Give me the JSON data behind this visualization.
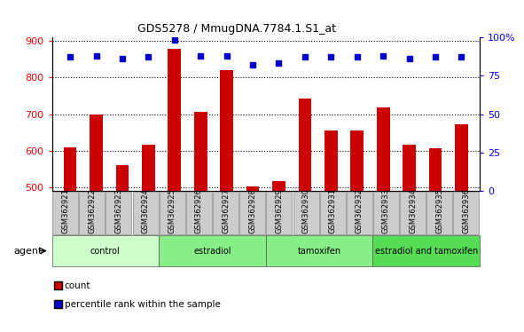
{
  "title": "GDS5278 / MmugDNA.7784.1.S1_at",
  "samples": [
    "GSM362921",
    "GSM362922",
    "GSM362923",
    "GSM362924",
    "GSM362925",
    "GSM362926",
    "GSM362927",
    "GSM362928",
    "GSM362929",
    "GSM362930",
    "GSM362931",
    "GSM362932",
    "GSM362933",
    "GSM362934",
    "GSM362935",
    "GSM362936"
  ],
  "counts": [
    610,
    700,
    560,
    617,
    878,
    707,
    820,
    503,
    518,
    742,
    655,
    655,
    718,
    617,
    608,
    672
  ],
  "percentile_ranks": [
    87,
    88,
    86,
    87,
    98,
    88,
    88,
    82,
    83,
    87,
    87,
    87,
    88,
    86,
    87,
    87
  ],
  "bar_color": "#cc0000",
  "dot_color": "#0000cc",
  "ylim_left": [
    490,
    910
  ],
  "ylim_right": [
    0,
    100
  ],
  "yticks_left": [
    500,
    600,
    700,
    800,
    900
  ],
  "yticks_right": [
    0,
    25,
    50,
    75,
    100
  ],
  "groups": [
    {
      "label": "control",
      "start": 0,
      "end": 4,
      "color": "#ccffcc"
    },
    {
      "label": "estradiol",
      "start": 4,
      "end": 8,
      "color": "#88ee88"
    },
    {
      "label": "tamoxifen",
      "start": 8,
      "end": 12,
      "color": "#88ee88"
    },
    {
      "label": "estradiol and tamoxifen",
      "start": 12,
      "end": 16,
      "color": "#55dd55"
    }
  ],
  "agent_label": "agent",
  "legend_count_label": "count",
  "legend_pct_label": "percentile rank within the sample",
  "background_color": "#ffffff",
  "plot_bg_color": "#ffffff",
  "xticklabel_box_color": "#cccccc",
  "xticklabel_edge_color": "#888888"
}
